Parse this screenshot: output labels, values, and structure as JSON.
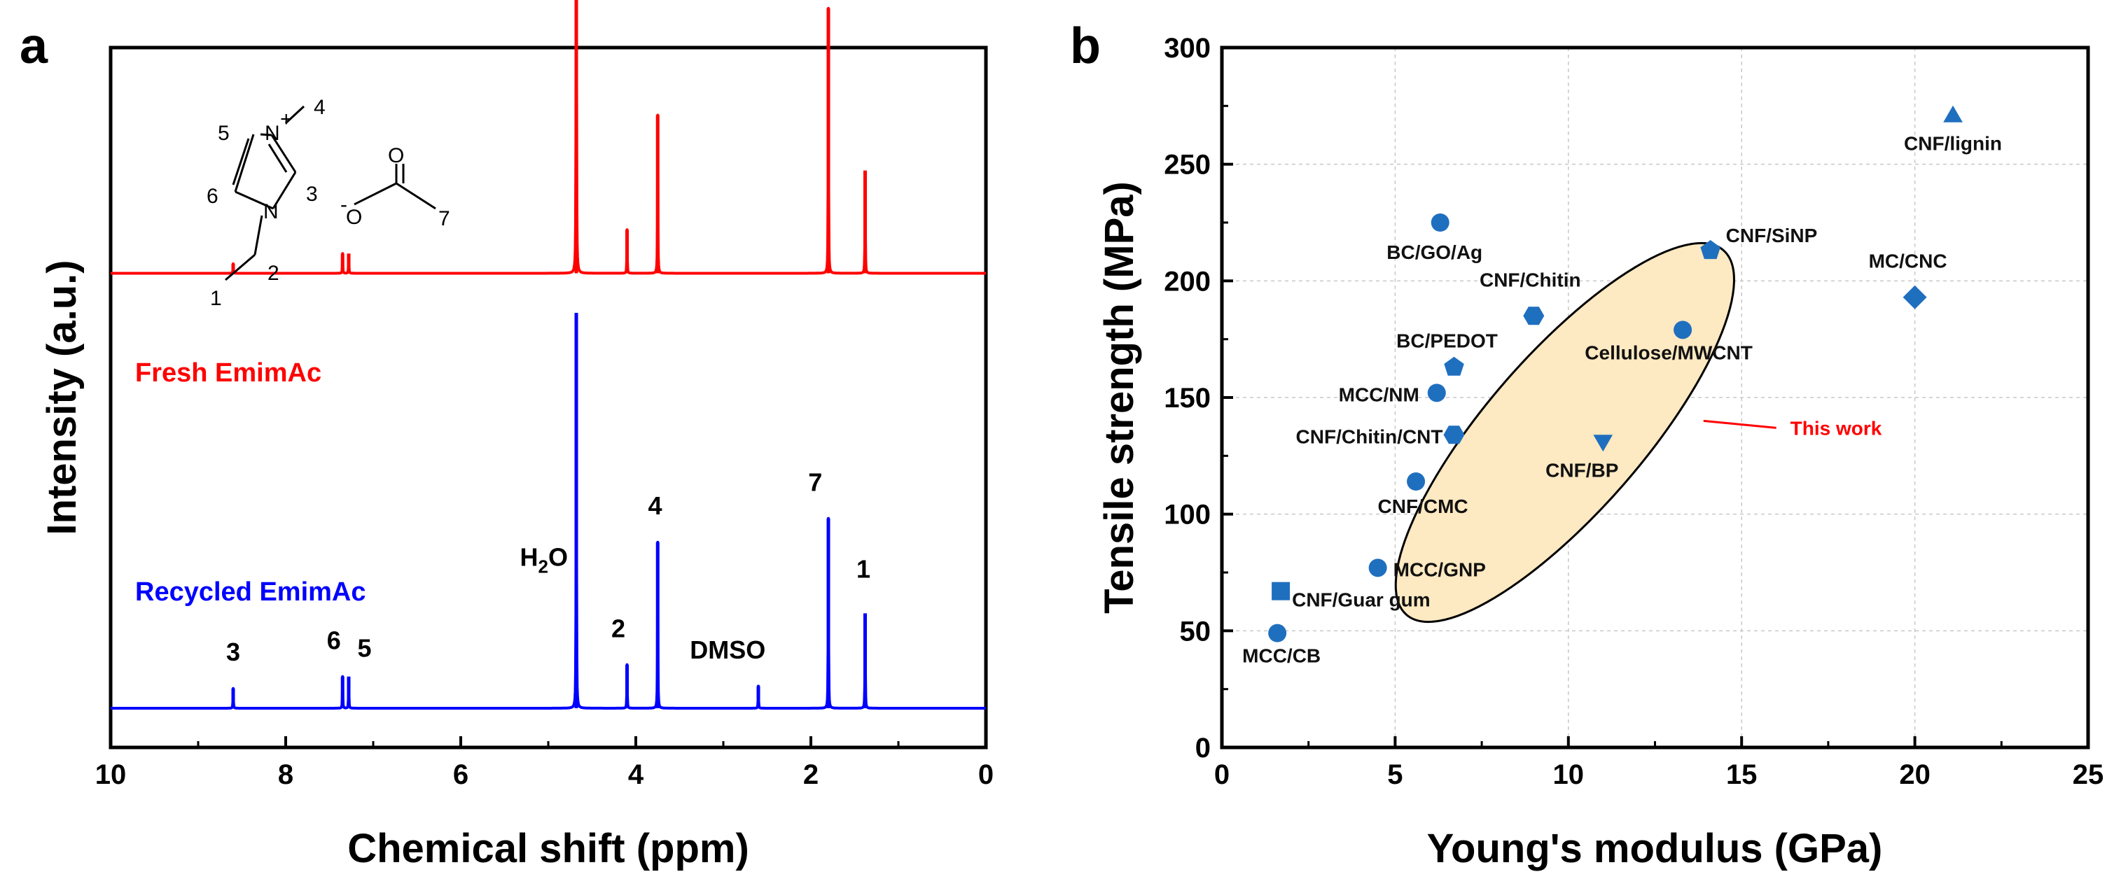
{
  "colors": {
    "fresh": "#ff0000",
    "recycled": "#0000ff",
    "marker": "#1f6fbf",
    "ellipse_fill": "#fde9c2",
    "annotation": "#ff0000"
  },
  "panel_a_letter": "a",
  "panel_b_letter": "b",
  "chart_data": [
    {
      "type": "line",
      "title": "",
      "xlabel": "Chemical shift (ppm)",
      "ylabel": "Intensity (a.u.)",
      "xlim": [
        10,
        0
      ],
      "x_ticks": [
        "10",
        "8",
        "6",
        "4",
        "2",
        "0"
      ],
      "series": [
        {
          "name": "Fresh EmimAc",
          "color": "#ff0000",
          "baseline": 0.55,
          "peaks": [
            {
              "ppm": 8.6,
              "h": 0.012,
              "w": 0.02
            },
            {
              "ppm": 7.35,
              "h": 0.025,
              "w": 0.02
            },
            {
              "ppm": 7.28,
              "h": 0.025,
              "w": 0.02
            },
            {
              "ppm": 4.68,
              "h": 0.7,
              "w": 0.02
            },
            {
              "ppm": 4.1,
              "h": 0.055,
              "w": 0.02
            },
            {
              "ppm": 3.75,
              "h": 0.2,
              "w": 0.02
            },
            {
              "ppm": 1.8,
              "h": 0.335,
              "w": 0.02
            },
            {
              "ppm": 1.38,
              "h": 0.13,
              "w": 0.02
            }
          ]
        },
        {
          "name": "Recycled EmimAc",
          "color": "#0000ff",
          "baseline": 0.0,
          "peaks": [
            {
              "ppm": 8.6,
              "h": 0.025,
              "w": 0.02
            },
            {
              "ppm": 7.35,
              "h": 0.04,
              "w": 0.02
            },
            {
              "ppm": 7.28,
              "h": 0.04,
              "w": 0.02
            },
            {
              "ppm": 4.68,
              "h": 0.5,
              "w": 0.02
            },
            {
              "ppm": 4.1,
              "h": 0.055,
              "w": 0.02
            },
            {
              "ppm": 3.75,
              "h": 0.21,
              "w": 0.02
            },
            {
              "ppm": 2.6,
              "h": 0.028,
              "w": 0.02
            },
            {
              "ppm": 1.8,
              "h": 0.24,
              "w": 0.02
            },
            {
              "ppm": 1.38,
              "h": 0.12,
              "w": 0.02
            }
          ]
        }
      ],
      "peak_labels": [
        {
          "text": "3",
          "ppm": 8.6,
          "y": 0.06
        },
        {
          "text": "6",
          "ppm": 7.45,
          "y": 0.075
        },
        {
          "text": "5",
          "ppm": 7.1,
          "y": 0.065
        },
        {
          "text": "H",
          "sub": "2",
          "tail": "O",
          "ppm": 5.05,
          "y": 0.18
        },
        {
          "text": "2",
          "ppm": 4.2,
          "y": 0.09
        },
        {
          "text": "4",
          "ppm": 3.78,
          "y": 0.245
        },
        {
          "text": "DMSO",
          "ppm": 2.95,
          "y": 0.063
        },
        {
          "text": "7",
          "ppm": 1.95,
          "y": 0.275
        },
        {
          "text": "1",
          "ppm": 1.4,
          "y": 0.165
        }
      ],
      "series_labels": [
        "Fresh EmimAc",
        "Recycled EmimAc"
      ],
      "molecule_labels": {
        "n5": "5",
        "n4": "4",
        "plus": "+",
        "n1": "N",
        "n3": "N",
        "n6": "6",
        "n3b": "3",
        "o1": "O",
        "o2": "O",
        "minus": "-",
        "n7": "7",
        "n2": "2",
        "n1b": "1"
      }
    },
    {
      "type": "scatter",
      "title": "",
      "xlabel": "Young's modulus (GPa)",
      "ylabel": "Tensile strength (MPa)",
      "xlim": [
        0,
        25
      ],
      "ylim": [
        0,
        300
      ],
      "x_ticks": [
        "0",
        "5",
        "10",
        "15",
        "20",
        "25"
      ],
      "y_ticks": [
        "0",
        "50",
        "100",
        "150",
        "200",
        "250",
        "300"
      ],
      "grid": true,
      "points": [
        {
          "label": "CNF/lignin",
          "x": 21.1,
          "y": 271,
          "shape": "triangle-up"
        },
        {
          "label": "BC/GO/Ag",
          "x": 6.3,
          "y": 225,
          "shape": "circle"
        },
        {
          "label": "CNF/SiNP",
          "x": 14.1,
          "y": 213,
          "shape": "pentagon"
        },
        {
          "label": "MC/CNC",
          "x": 20.0,
          "y": 193,
          "shape": "diamond"
        },
        {
          "label": "CNF/Chitin",
          "x": 9.0,
          "y": 185,
          "shape": "hexagon"
        },
        {
          "label": "Cellulose/MWCNT",
          "x": 13.3,
          "y": 179,
          "shape": "circle"
        },
        {
          "label": "BC/PEDOT",
          "x": 6.7,
          "y": 163,
          "shape": "pentagon"
        },
        {
          "label": "MCC/NM",
          "x": 6.2,
          "y": 152,
          "shape": "circle"
        },
        {
          "label": "CNF/Chitin/CNT",
          "x": 6.7,
          "y": 134,
          "shape": "hexagon"
        },
        {
          "label": "CNF/BP",
          "x": 11.0,
          "y": 131,
          "shape": "triangle-down"
        },
        {
          "label": "CNF/CMC",
          "x": 5.6,
          "y": 114,
          "shape": "circle"
        },
        {
          "label": "MCC/GNP",
          "x": 4.5,
          "y": 77,
          "shape": "circle"
        },
        {
          "label": "CNF/Guar gum",
          "x": 1.7,
          "y": 67,
          "shape": "square"
        },
        {
          "label": "MCC/CB",
          "x": 1.6,
          "y": 49,
          "shape": "circle"
        }
      ],
      "annotation": {
        "text": "This work",
        "ellipse_center": [
          9.9,
          135
        ],
        "arrow_from": [
          16.0,
          137
        ]
      }
    }
  ]
}
